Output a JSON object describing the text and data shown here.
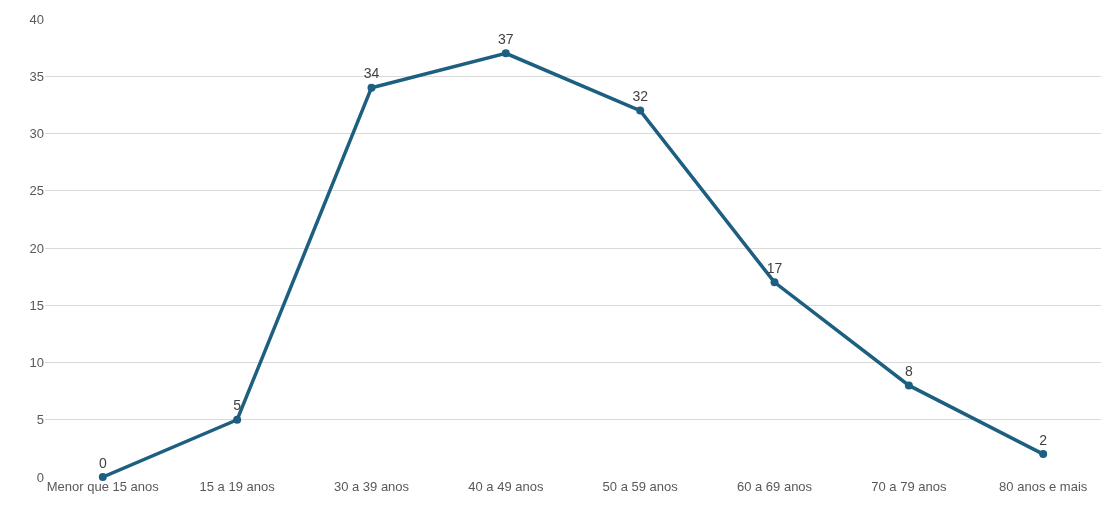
{
  "chart_data": {
    "type": "line",
    "categories": [
      "Menor que 15 anos",
      "15 a 19 anos",
      "30 a 39 anos",
      "40 a 49 anos",
      "50 a 59 anos",
      "60 a 69 anos",
      "70 a 79 anos",
      "80 anos e mais"
    ],
    "values": [
      0,
      5,
      34,
      37,
      32,
      17,
      8,
      2
    ],
    "color": "#1d5f80",
    "ylim": [
      0,
      40
    ],
    "yticks": [
      0,
      5,
      10,
      15,
      20,
      25,
      30,
      35,
      40
    ],
    "grid": "y",
    "legend": false,
    "marker": "circle",
    "line_style": "solid",
    "data_labels": true
  }
}
